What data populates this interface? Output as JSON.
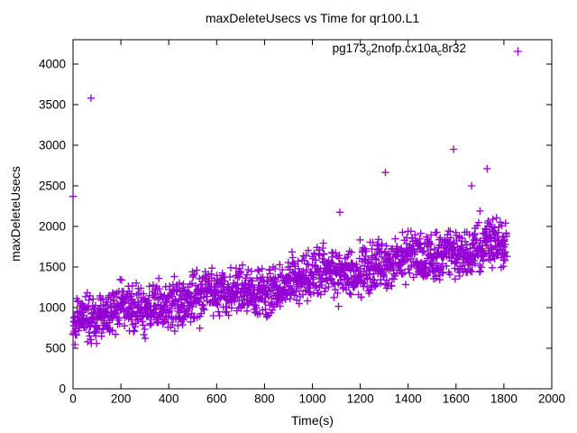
{
  "colors": {
    "background": "#ffffff",
    "marker": "#9400D3",
    "axis": "#000000",
    "text": "#000000"
  },
  "chart_data": {
    "type": "scatter",
    "title": "maxDeleteUsecs vs Time for qr100.L1",
    "xlabel": "Time(s)",
    "ylabel": "maxDeleteUsecs",
    "xlim": [
      0,
      2000
    ],
    "ylim": [
      0,
      4300
    ],
    "x_ticks": [
      0,
      200,
      400,
      600,
      800,
      1000,
      1200,
      1400,
      1600,
      1800,
      2000
    ],
    "y_ticks": [
      0,
      500,
      1000,
      1500,
      2000,
      2500,
      3000,
      3500,
      4000
    ],
    "grid": false,
    "legend": {
      "position": "top-right-inside",
      "entries": [
        {
          "label_plain": "pg173_o2nofp.cx10a_c8r32",
          "segments": [
            {
              "t": "pg173"
            },
            {
              "t": "o",
              "sub": true
            },
            {
              "t": "2nofp.cx10a"
            },
            {
              "t": "c",
              "sub": true
            },
            {
              "t": "8r32"
            }
          ],
          "marker": "plus",
          "color": "#9400D3"
        }
      ]
    },
    "series": [
      {
        "name": "pg173_o2nofp.cx10a_c8r32",
        "marker": "plus",
        "color": "#9400D3",
        "x_data_range": [
          0,
          1812
        ],
        "trend": {
          "intercept": 840,
          "slope": 0.53
        },
        "scatter_band": {
          "count": 1700,
          "seed": 20240613,
          "noise_half_width": 360,
          "y_floor": 420,
          "dip_probability": 0.03,
          "dip_depth": 220,
          "spike_probability": 0.03,
          "spike_height": 160,
          "waves": [
            {
              "amplitude": 30,
              "period": 420
            },
            {
              "amplitude": 22,
              "period": 170
            }
          ]
        },
        "outliers": [
          [
            0,
            2370
          ],
          [
            75,
            3580
          ],
          [
            1115,
            2175
          ],
          [
            1305,
            2665
          ],
          [
            1590,
            2950
          ],
          [
            1665,
            2500
          ],
          [
            1700,
            2190
          ],
          [
            1730,
            2710
          ]
        ]
      }
    ]
  }
}
